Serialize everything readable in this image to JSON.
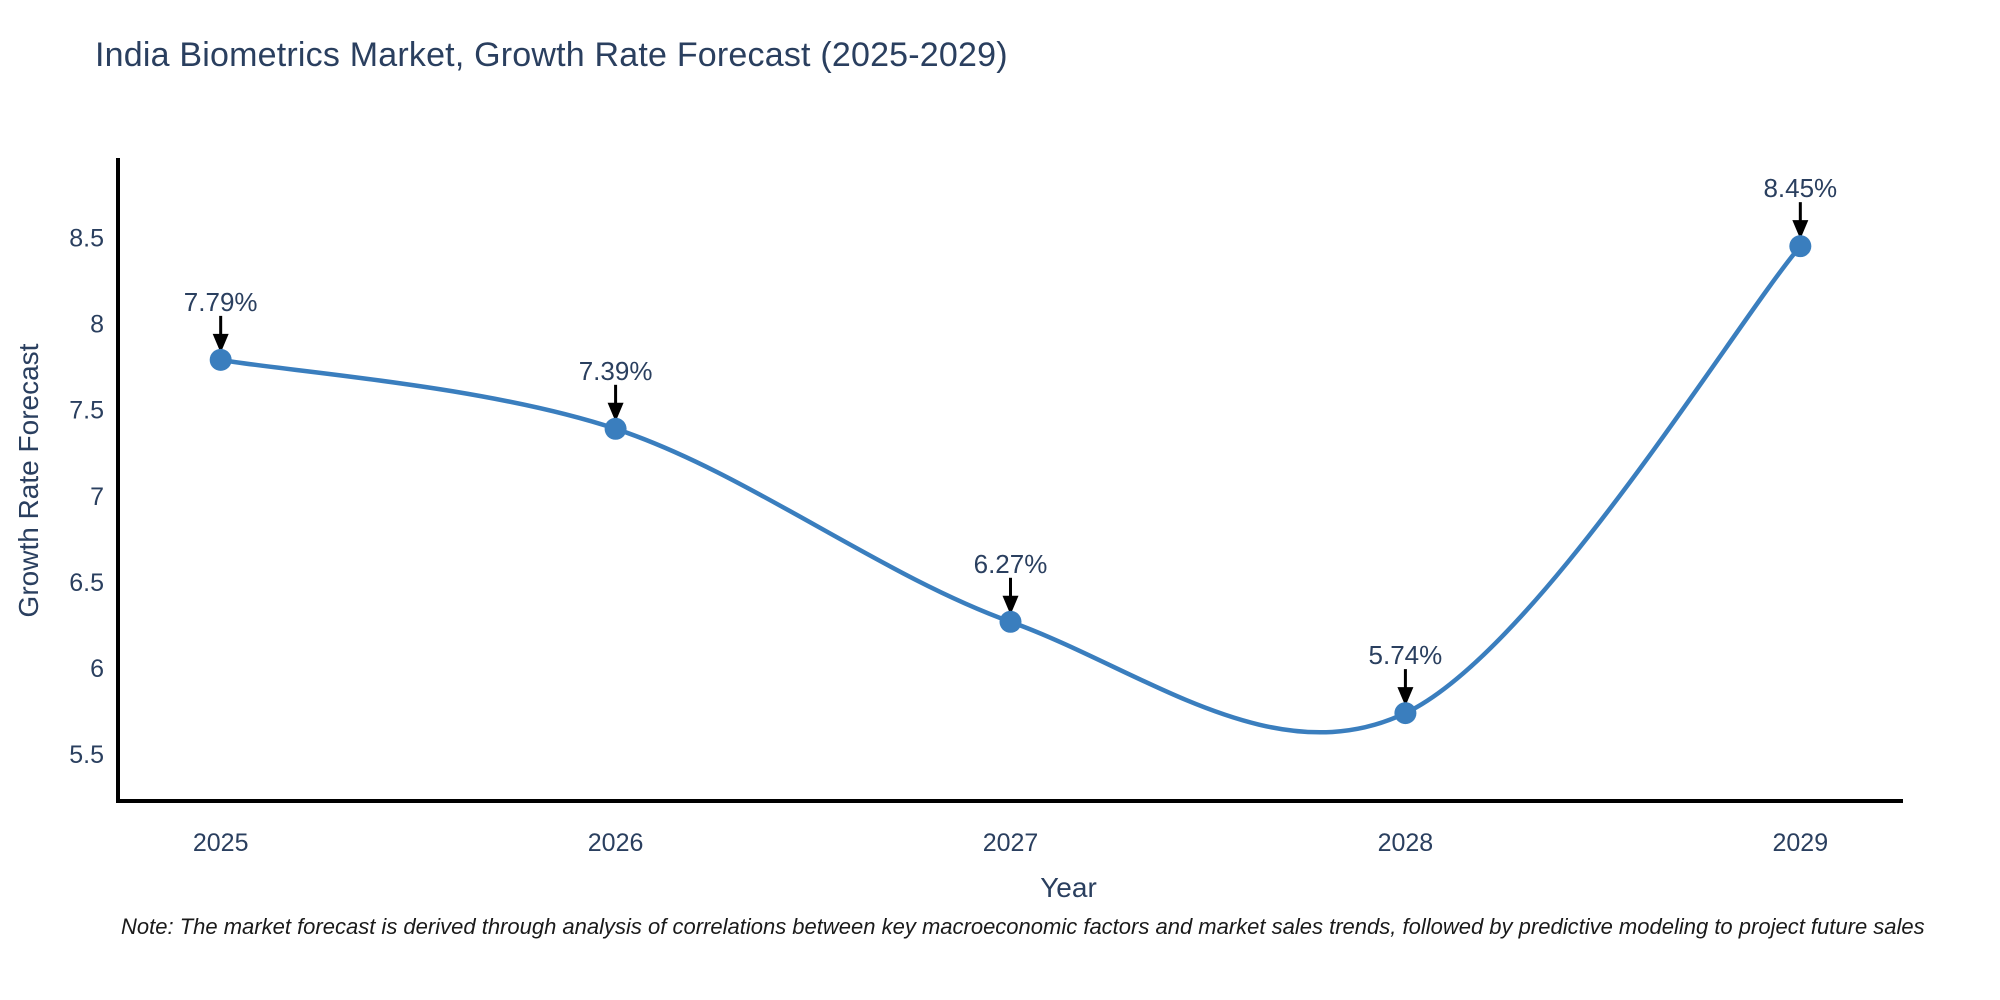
{
  "chart_data": {
    "type": "line",
    "line_shape": "spline",
    "title": "India Biometrics Market, Growth Rate Forecast (2025-2029)",
    "xlabel": "Year",
    "ylabel": "Growth Rate Forecast",
    "x": [
      2025,
      2026,
      2027,
      2028,
      2029
    ],
    "series": [
      {
        "name": "Growth Rate Forecast",
        "values": [
          7.79,
          7.39,
          6.27,
          5.74,
          8.45
        ]
      }
    ],
    "point_labels": [
      "7.79%",
      "7.39%",
      "6.27%",
      "5.74%",
      "8.45%"
    ],
    "xticks": [
      "2025",
      "2026",
      "2027",
      "2028",
      "2029"
    ],
    "yticks": [
      "5.5",
      "6",
      "6.5",
      "7",
      "7.5",
      "8",
      "8.5"
    ],
    "xlim": [
      2024.74,
      2029.26
    ],
    "ylim": [
      5.23,
      8.95
    ],
    "grid": false,
    "legend": "none",
    "note": "Note: The market forecast is derived through analysis of correlations between key macroeconomic factors and market sales trends, followed by predictive modeling to project future sales",
    "colors": {
      "line": "#3a7ebe",
      "marker": "#3a7ebe",
      "axis": "#000000",
      "text": "#2a3f5f",
      "arrow": "#000000",
      "background": "#ffffff"
    }
  }
}
